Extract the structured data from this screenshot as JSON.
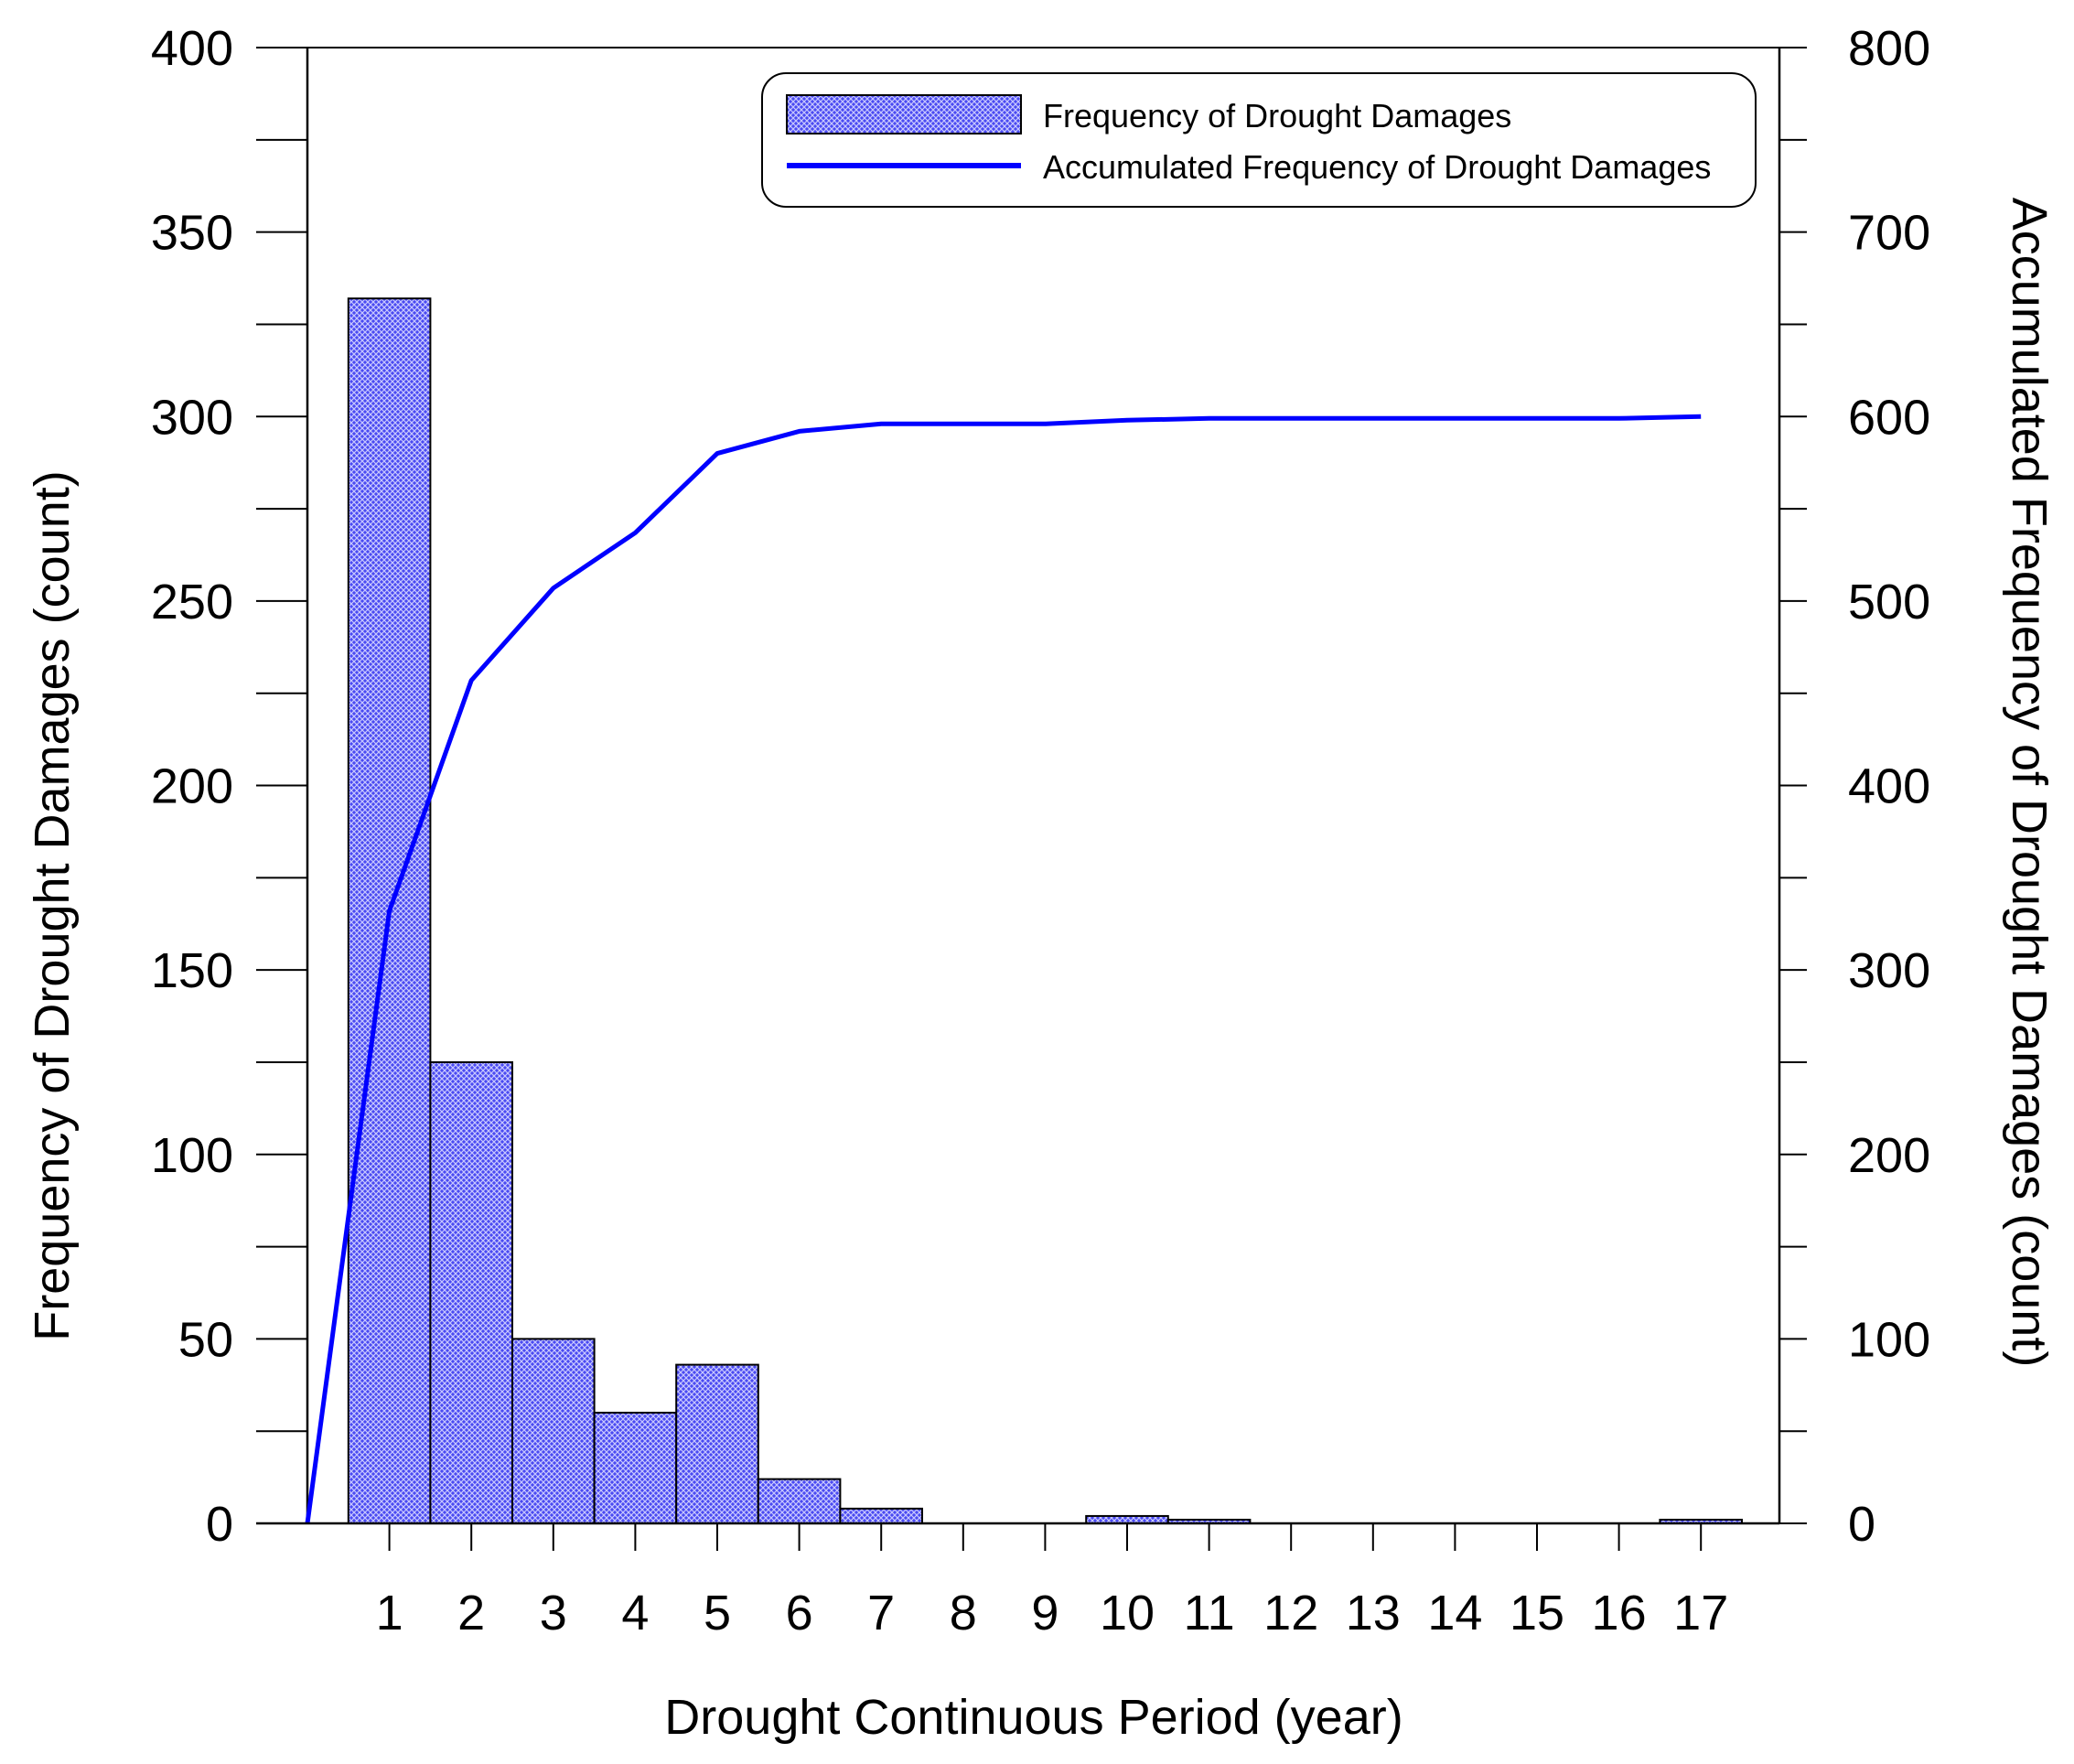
{
  "chart_data": {
    "type": "bar",
    "title": "",
    "xlabel": "Drought Continuous  Period (year)",
    "ylabel": "Frequency of Drought Damages (count)",
    "y2label": "Accumulated Frequency of Drought Damages (count)",
    "categories": [
      "1",
      "2",
      "3",
      "4",
      "5",
      "6",
      "7",
      "8",
      "9",
      "10",
      "11",
      "12",
      "13",
      "14",
      "15",
      "16",
      "17"
    ],
    "ylim": [
      0,
      400
    ],
    "y2lim": [
      0,
      800
    ],
    "yticks": [
      "0",
      "50",
      "100",
      "150",
      "200",
      "250",
      "300",
      "350",
      "400"
    ],
    "y2ticks": [
      "0",
      "100",
      "200",
      "300",
      "400",
      "500",
      "600",
      "700",
      "800"
    ],
    "grid": false,
    "legend_position": "top-right",
    "series": [
      {
        "name": "Frequency of Drought Damages",
        "type": "bar",
        "axis": "left",
        "color": "#3a3af0",
        "values": [
          332,
          125,
          50,
          30,
          43,
          12,
          4,
          0,
          0,
          2,
          1,
          0,
          0,
          0,
          0,
          0,
          1
        ]
      },
      {
        "name": "Accumulated Frequency of Drought Damages",
        "type": "line",
        "axis": "right",
        "color": "#0000ff",
        "x": [
          0,
          1,
          2,
          3,
          4,
          5,
          6,
          7,
          8,
          9,
          10,
          11,
          12,
          13,
          14,
          15,
          16,
          17
        ],
        "values": [
          0,
          332,
          457,
          507,
          537,
          580,
          592,
          596,
          596,
          596,
          598,
          599,
          599,
          599,
          599,
          599,
          599,
          600
        ]
      }
    ]
  }
}
